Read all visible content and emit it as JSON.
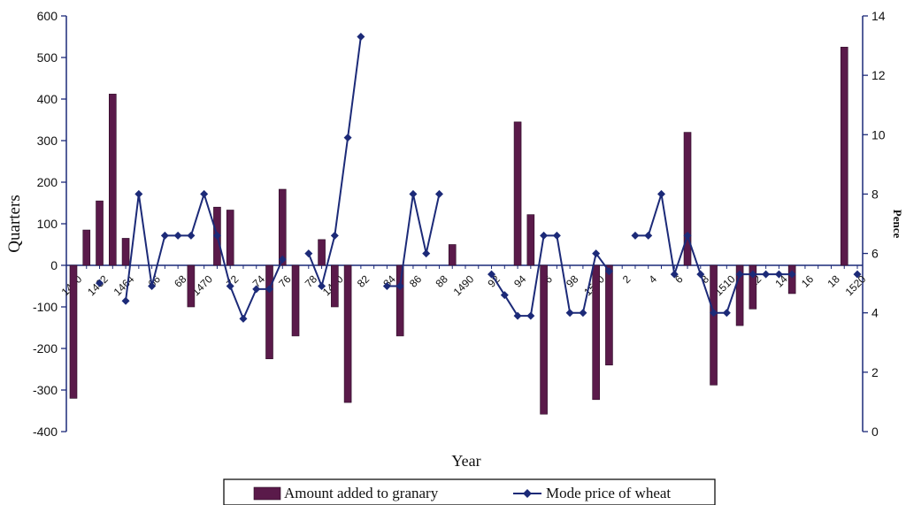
{
  "chart_data": {
    "type": "bar+line",
    "xlabel": "Year",
    "y_left_label": "Quarters",
    "y_right_label": "Pence",
    "y_left_ticks": [
      "600",
      "500",
      "400",
      "300",
      "200",
      "100",
      "0",
      "-100",
      "-200",
      "-300",
      "-400"
    ],
    "y_right_ticks": [
      "14",
      "12",
      "10",
      "8",
      "6",
      "4",
      "2",
      "0"
    ],
    "ylim_left": [
      -400,
      600
    ],
    "ylim_right": [
      0,
      14
    ],
    "x_range": [
      1460,
      1521
    ],
    "x_tick_labels": [
      {
        "year": 1460,
        "label": "1460"
      },
      {
        "year": 1462,
        "label": "1462"
      },
      {
        "year": 1464,
        "label": "1464"
      },
      {
        "year": 1466,
        "label": "66"
      },
      {
        "year": 1468,
        "label": "68"
      },
      {
        "year": 1470,
        "label": "1470"
      },
      {
        "year": 1472,
        "label": "72"
      },
      {
        "year": 1474,
        "label": "74"
      },
      {
        "year": 1476,
        "label": "76"
      },
      {
        "year": 1478,
        "label": "78"
      },
      {
        "year": 1480,
        "label": "1480"
      },
      {
        "year": 1482,
        "label": "82"
      },
      {
        "year": 1484,
        "label": "84"
      },
      {
        "year": 1486,
        "label": "86"
      },
      {
        "year": 1488,
        "label": "88"
      },
      {
        "year": 1490,
        "label": "1490"
      },
      {
        "year": 1492,
        "label": "92"
      },
      {
        "year": 1494,
        "label": "94"
      },
      {
        "year": 1496,
        "label": "96"
      },
      {
        "year": 1498,
        "label": "98"
      },
      {
        "year": 1500,
        "label": "1500"
      },
      {
        "year": 1502,
        "label": "2"
      },
      {
        "year": 1504,
        "label": "4"
      },
      {
        "year": 1506,
        "label": "6"
      },
      {
        "year": 1508,
        "label": "8"
      },
      {
        "year": 1510,
        "label": "1510"
      },
      {
        "year": 1512,
        "label": "12"
      },
      {
        "year": 1514,
        "label": "14"
      },
      {
        "year": 1516,
        "label": "16"
      },
      {
        "year": 1518,
        "label": "18"
      },
      {
        "year": 1520,
        "label": "1520"
      }
    ],
    "series": [
      {
        "name": "Amount added to granary",
        "type": "bar",
        "axis": "left",
        "color": "#5a1a4a",
        "points": [
          {
            "x": 1460,
            "y": -320
          },
          {
            "x": 1461,
            "y": 85
          },
          {
            "x": 1462,
            "y": 155
          },
          {
            "x": 1463,
            "y": 412
          },
          {
            "x": 1464,
            "y": 65
          },
          {
            "x": 1469,
            "y": -100
          },
          {
            "x": 1471,
            "y": 140
          },
          {
            "x": 1472,
            "y": 133
          },
          {
            "x": 1475,
            "y": -225
          },
          {
            "x": 1476,
            "y": 183
          },
          {
            "x": 1477,
            "y": -170
          },
          {
            "x": 1479,
            "y": 62
          },
          {
            "x": 1480,
            "y": -100
          },
          {
            "x": 1481,
            "y": -330
          },
          {
            "x": 1485,
            "y": -170
          },
          {
            "x": 1489,
            "y": 50
          },
          {
            "x": 1494,
            "y": 345
          },
          {
            "x": 1495,
            "y": 122
          },
          {
            "x": 1496,
            "y": -358
          },
          {
            "x": 1500,
            "y": -323
          },
          {
            "x": 1501,
            "y": -240
          },
          {
            "x": 1507,
            "y": 320
          },
          {
            "x": 1509,
            "y": -288
          },
          {
            "x": 1511,
            "y": -145
          },
          {
            "x": 1512,
            "y": -105
          },
          {
            "x": 1515,
            "y": -68
          },
          {
            "x": 1519,
            "y": 525
          }
        ]
      },
      {
        "name": "Mode price of wheat",
        "type": "line",
        "axis": "right",
        "color": "#1c2a78",
        "segments": [
          [
            {
              "x": 1462,
              "y": 5.0
            }
          ],
          [
            {
              "x": 1464,
              "y": 4.4
            },
            {
              "x": 1465,
              "y": 8.0
            },
            {
              "x": 1466,
              "y": 4.9
            },
            {
              "x": 1467,
              "y": 6.6
            },
            {
              "x": 1468,
              "y": 6.6
            },
            {
              "x": 1469,
              "y": 6.6
            },
            {
              "x": 1470,
              "y": 8.0
            },
            {
              "x": 1471,
              "y": 6.6
            },
            {
              "x": 1472,
              "y": 4.9
            },
            {
              "x": 1473,
              "y": 3.8
            },
            {
              "x": 1474,
              "y": 4.8
            },
            {
              "x": 1475,
              "y": 4.8
            },
            {
              "x": 1476,
              "y": 5.8
            }
          ],
          [
            {
              "x": 1478,
              "y": 6.0
            },
            {
              "x": 1479,
              "y": 4.9
            },
            {
              "x": 1480,
              "y": 6.6
            },
            {
              "x": 1481,
              "y": 9.9
            },
            {
              "x": 1482,
              "y": 13.3
            }
          ],
          [
            {
              "x": 1484,
              "y": 4.9
            },
            {
              "x": 1485,
              "y": 4.9
            },
            {
              "x": 1486,
              "y": 8.0
            },
            {
              "x": 1487,
              "y": 6.0
            },
            {
              "x": 1488,
              "y": 8.0
            }
          ],
          [
            {
              "x": 1492,
              "y": 5.3
            },
            {
              "x": 1493,
              "y": 4.6
            },
            {
              "x": 1494,
              "y": 3.9
            },
            {
              "x": 1495,
              "y": 3.9
            },
            {
              "x": 1496,
              "y": 6.6
            },
            {
              "x": 1497,
              "y": 6.6
            },
            {
              "x": 1498,
              "y": 4.0
            },
            {
              "x": 1499,
              "y": 4.0
            },
            {
              "x": 1500,
              "y": 6.0
            },
            {
              "x": 1501,
              "y": 5.4
            }
          ],
          [
            {
              "x": 1503,
              "y": 6.6
            },
            {
              "x": 1504,
              "y": 6.6
            },
            {
              "x": 1505,
              "y": 8.0
            },
            {
              "x": 1506,
              "y": 5.3
            },
            {
              "x": 1507,
              "y": 6.6
            },
            {
              "x": 1508,
              "y": 5.3
            },
            {
              "x": 1509,
              "y": 4.0
            },
            {
              "x": 1510,
              "y": 4.0
            },
            {
              "x": 1511,
              "y": 5.3
            },
            {
              "x": 1512,
              "y": 5.3
            },
            {
              "x": 1513,
              "y": 5.3
            },
            {
              "x": 1514,
              "y": 5.3
            },
            {
              "x": 1515,
              "y": 5.3
            }
          ],
          [
            {
              "x": 1520,
              "y": 5.3
            }
          ]
        ]
      }
    ],
    "legend": [
      {
        "label": "Amount added to granary",
        "kind": "bar"
      },
      {
        "label": "Mode price of wheat",
        "kind": "line"
      }
    ],
    "legend_position": "bottom-center",
    "grid": false
  }
}
